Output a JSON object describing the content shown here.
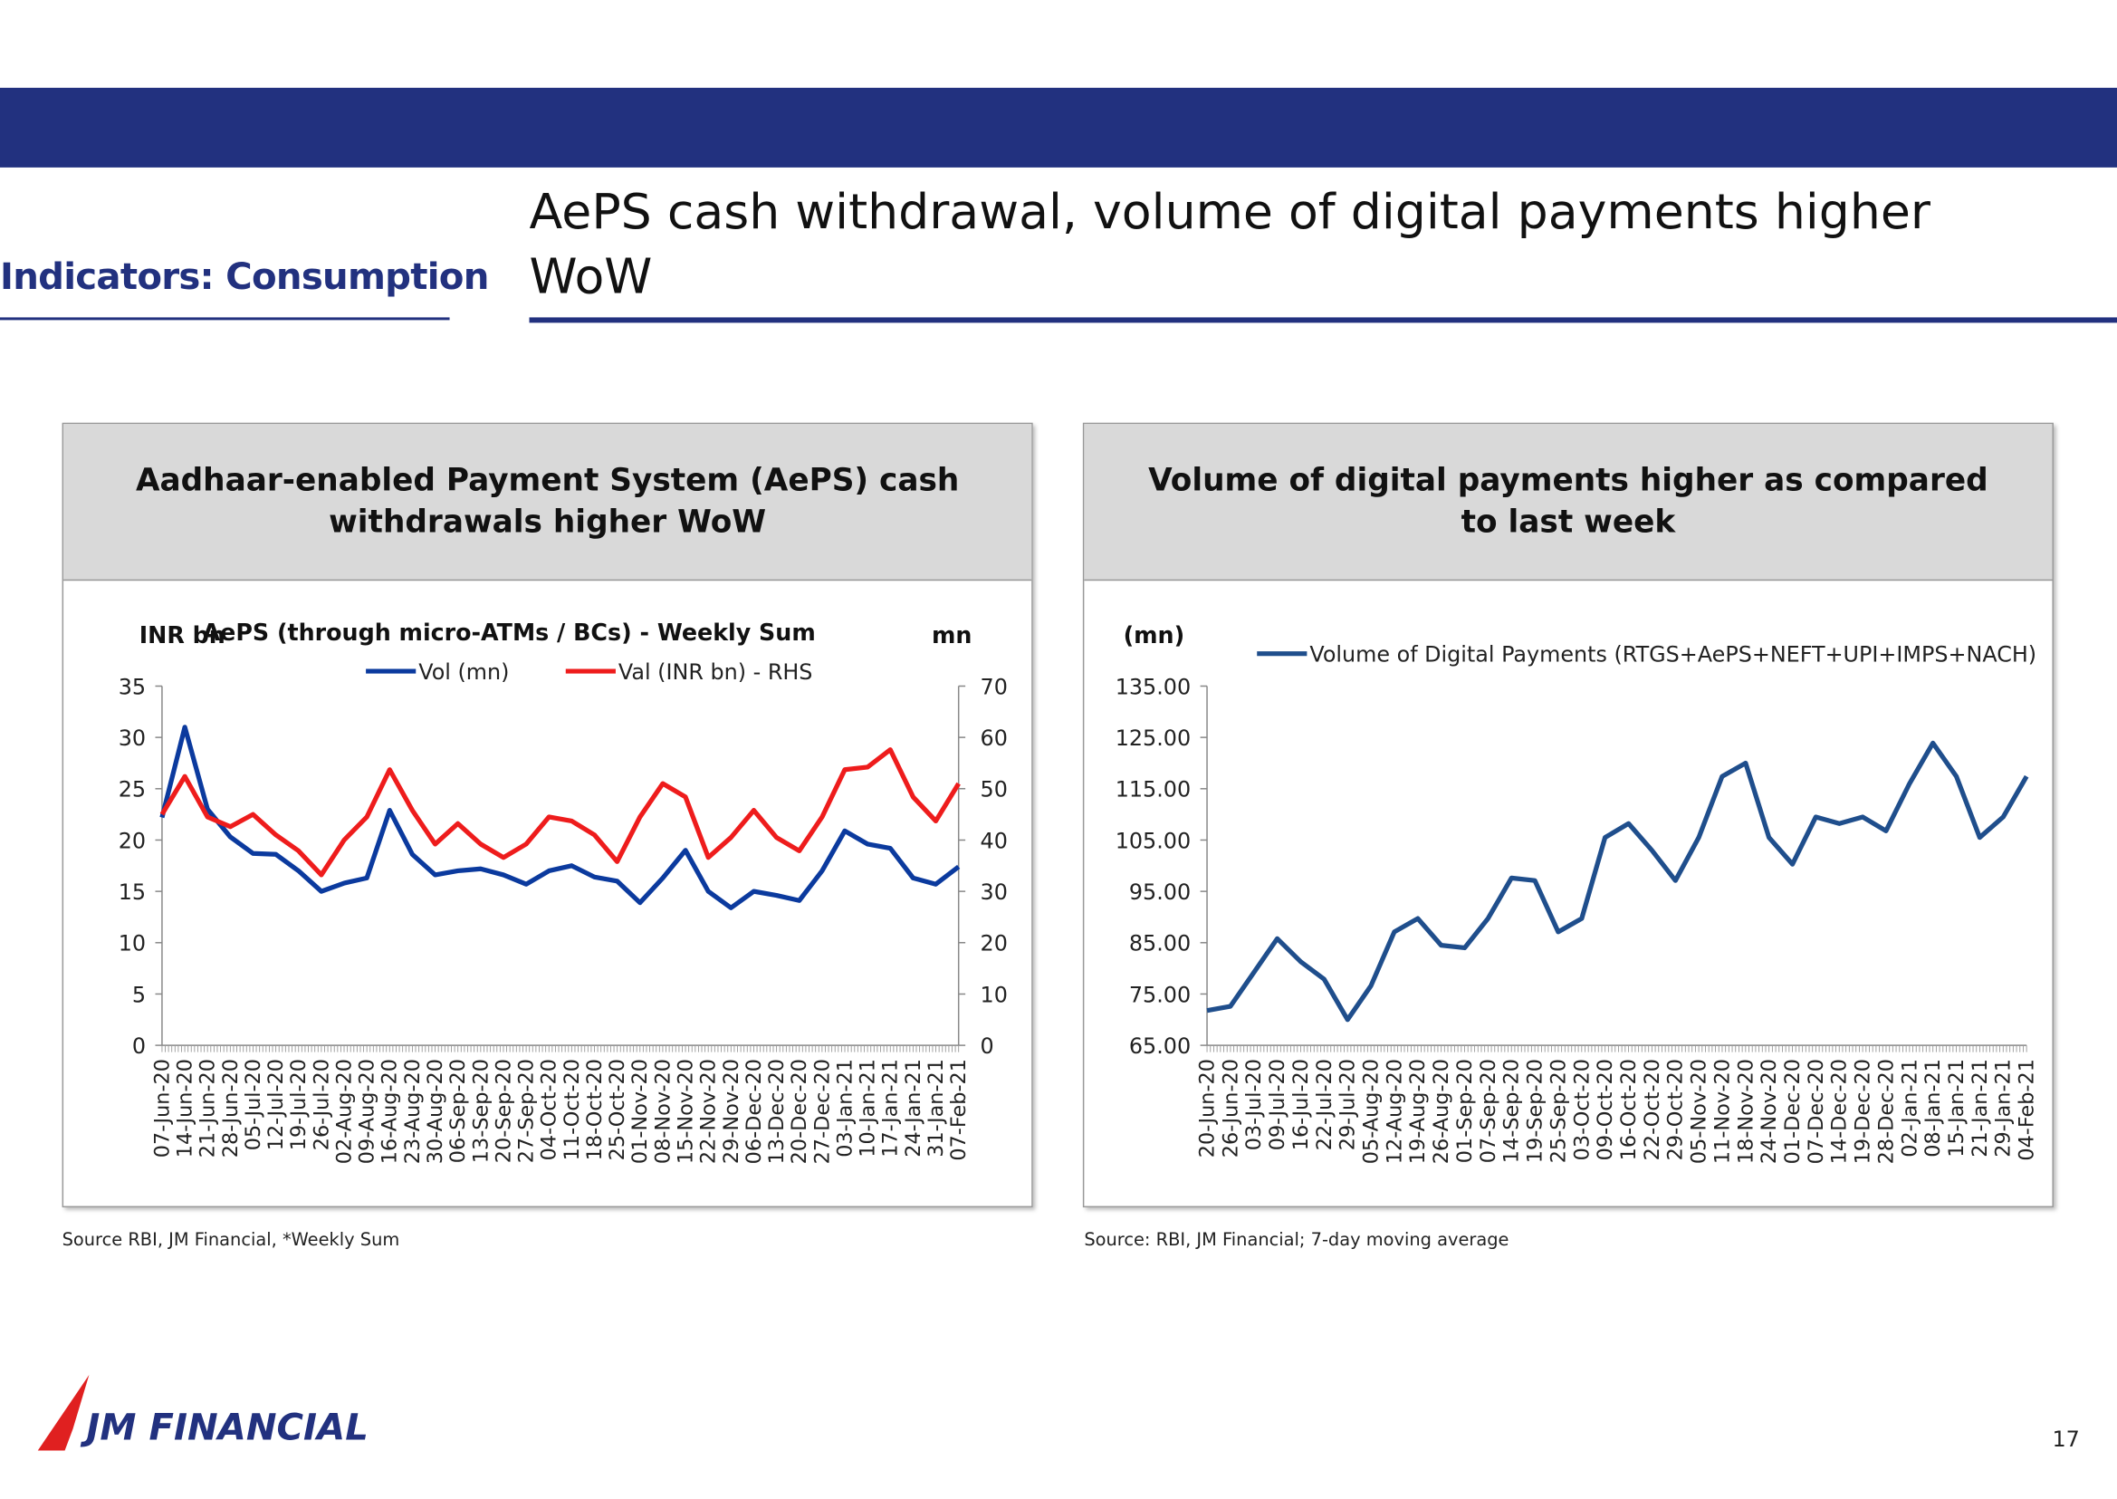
{
  "header": {
    "section": "Indicators: Consumption",
    "title": "AePS cash withdrawal, volume of digital payments higher WoW"
  },
  "footer": {
    "logo": "JM FINANCIAL",
    "page": "17"
  },
  "chart_data": [
    {
      "type": "line",
      "title": "Aadhaar-enabled Payment System (AePS) cash withdrawals higher WoW",
      "subtitle": "AePS (through micro-ATMs / BCs) - Weekly Sum",
      "y_label": "INR bn",
      "y2_label": "mn",
      "source": "Source RBI, JM Financial, *Weekly Sum",
      "categories": [
        "07-Jun-20",
        "14-Jun-20",
        "21-Jun-20",
        "28-Jun-20",
        "05-Jul-20",
        "12-Jul-20",
        "19-Jul-20",
        "26-Jul-20",
        "02-Aug-20",
        "09-Aug-20",
        "16-Aug-20",
        "23-Aug-20",
        "30-Aug-20",
        "06-Sep-20",
        "13-Sep-20",
        "20-Sep-20",
        "27-Sep-20",
        "04-Oct-20",
        "11-Oct-20",
        "18-Oct-20",
        "25-Oct-20",
        "01-Nov-20",
        "08-Nov-20",
        "15-Nov-20",
        "22-Nov-20",
        "29-Nov-20",
        "06-Dec-20",
        "13-Dec-20",
        "20-Dec-20",
        "27-Dec-20",
        "03-Jan-21",
        "10-Jan-21",
        "17-Jan-21",
        "24-Jan-21",
        "31-Jan-21",
        "07-Feb-21"
      ],
      "series": [
        {
          "name": "Vol (mn)",
          "color": "#0b3a9e",
          "values": [
            22.2,
            31,
            23,
            20.3,
            18.7,
            18.6,
            17,
            15,
            15.8,
            16.3,
            22.9,
            18.6,
            16.6,
            17,
            17.2,
            16.6,
            15.7,
            17,
            17.5,
            16.4,
            16,
            13.9,
            16.3,
            19,
            15,
            13.4,
            15,
            14.6,
            14.1,
            17,
            20.9,
            19.6,
            19.2,
            16.3,
            15.7,
            17.4
          ]
        },
        {
          "name": "Val (INR bn) - RHS",
          "color": "#ee1c1c",
          "axis": "y2",
          "values": [
            45,
            52.4,
            44.5,
            42.6,
            45,
            41,
            37.9,
            33.2,
            40,
            44.5,
            53.7,
            45.8,
            39.2,
            43.2,
            39.2,
            36.6,
            39.2,
            44.5,
            43.7,
            41,
            35.8,
            44.5,
            51,
            48.4,
            36.6,
            40.5,
            45.8,
            40.5,
            37.9,
            44.5,
            53.7,
            54.2,
            57.6,
            48.4,
            43.7,
            51
          ]
        }
      ],
      "ylim": [
        0,
        35
      ],
      "yticks": [
        0,
        5,
        10,
        15,
        20,
        25,
        30,
        35
      ],
      "y2lim": [
        0,
        70
      ],
      "y2ticks": [
        0,
        10,
        20,
        30,
        40,
        50,
        60,
        70
      ]
    },
    {
      "type": "line",
      "title": "Volume of digital payments higher as compared to last week",
      "y_label": "(mn)",
      "source": "Source:  RBI, JM Financial; 7-day moving average",
      "categories": [
        "20-Jun-20",
        "26-Jun-20",
        "03-Jul-20",
        "09-Jul-20",
        "16-Jul-20",
        "22-Jul-20",
        "29-Jul-20",
        "05-Aug-20",
        "12-Aug-20",
        "19-Aug-20",
        "26-Aug-20",
        "01-Sep-20",
        "07-Sep-20",
        "14-Sep-20",
        "19-Sep-20",
        "25-Sep-20",
        "03-Oct-20",
        "09-Oct-20",
        "16-Oct-20",
        "22-Oct-20",
        "29-Oct-20",
        "05-Nov-20",
        "11-Nov-20",
        "18-Nov-20",
        "24-Nov-20",
        "01-Dec-20",
        "07-Dec-20",
        "14-Dec-20",
        "19-Dec-20",
        "28-Dec-20",
        "02-Jan-21",
        "08-Jan-21",
        "15-Jan-21",
        "21-Jan-21",
        "29-Jan-21",
        "04-Feb-21"
      ],
      "series": [
        {
          "name": "Volume of Digital Payments (RTGS+AePS+NEFT+UPI+IMPS+NACH)",
          "color": "#1f4e8c",
          "values": [
            71.8,
            72.6,
            79.2,
            85.8,
            81.3,
            77.9,
            70,
            76.6,
            87.1,
            89.7,
            84.5,
            84,
            89.7,
            97.6,
            97.1,
            87.1,
            89.7,
            105.5,
            108.2,
            103,
            97.1,
            105.5,
            117.4,
            120,
            105.5,
            100.3,
            109.5,
            108.2,
            109.5,
            106.8,
            116,
            123.9,
            117.4,
            105.5,
            109.5,
            117.4
          ]
        }
      ],
      "ylim": [
        65,
        135
      ],
      "yticks": [
        {
          "value": 65,
          "label": "65.00"
        },
        {
          "value": 75,
          "label": "75.00"
        },
        {
          "value": 85,
          "label": "85.00"
        },
        {
          "value": 95,
          "label": "95.00"
        },
        {
          "value": 105,
          "label": "105.00"
        },
        {
          "value": 115,
          "label": "115.00"
        },
        {
          "value": 125,
          "label": "125.00"
        },
        {
          "value": 135,
          "label": "135.00"
        }
      ]
    }
  ]
}
